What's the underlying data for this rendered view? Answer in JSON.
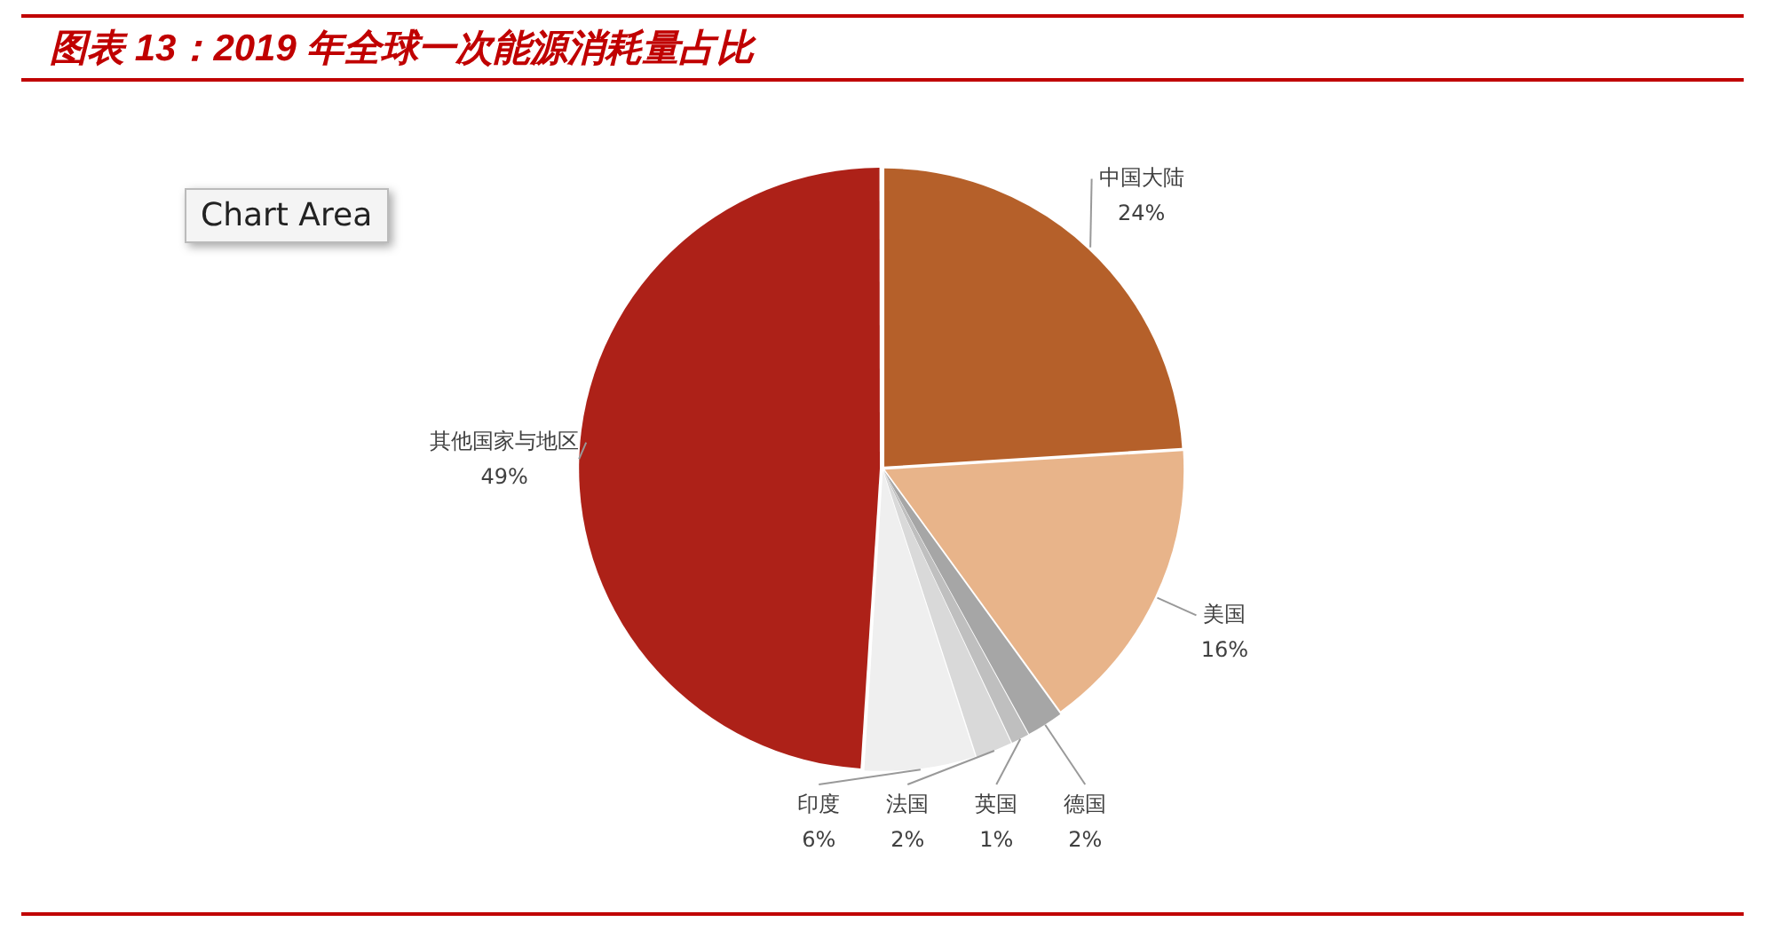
{
  "chart_data": {
    "type": "pie",
    "title": "图表 13：2019 年全球一次能源消耗量占比",
    "categories": [
      "中国大陆",
      "美国",
      "德国",
      "英国",
      "法国",
      "印度",
      "其他国家与地区"
    ],
    "values": [
      24,
      16,
      2,
      1,
      2,
      6,
      49
    ],
    "value_labels": [
      "24%",
      "16%",
      "2%",
      "1%",
      "2%",
      "6%",
      "49%"
    ],
    "colors": [
      "#b5602a",
      "#e8b48a",
      "#a6a6a6",
      "#bfbfbf",
      "#d9d9d9",
      "#efefef",
      "#ad2118"
    ],
    "legend": false,
    "annotations": [
      "Chart Area"
    ]
  }
}
